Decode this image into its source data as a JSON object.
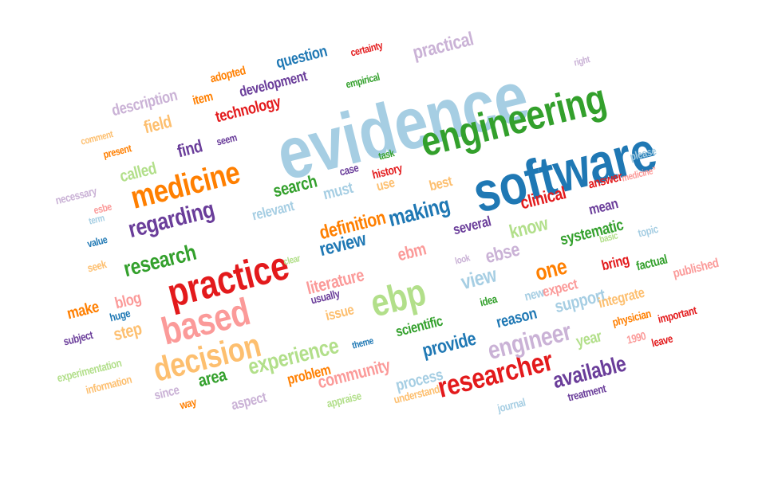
{
  "colors": {
    "light_blue": "#a6cee3",
    "blue": "#1f78b4",
    "light_green": "#b2df8a",
    "green": "#33a02c",
    "pink": "#fb9a99",
    "red": "#e31a1c",
    "light_orange": "#fdbf6f",
    "orange": "#ff7f00",
    "lavender": "#cab2d6",
    "purple": "#6a3d9a"
  },
  "words": [
    {
      "text": "evidence",
      "color": "light_blue"
    },
    {
      "text": "software",
      "color": "blue"
    },
    {
      "text": "engineering",
      "color": "green"
    },
    {
      "text": "practice",
      "color": "red"
    },
    {
      "text": "based",
      "color": "pink"
    },
    {
      "text": "ebp",
      "color": "light_green"
    },
    {
      "text": "decision",
      "color": "light_orange"
    },
    {
      "text": "medicine",
      "color": "orange"
    },
    {
      "text": "researcher",
      "color": "red"
    },
    {
      "text": "engineer",
      "color": "lavender"
    },
    {
      "text": "available",
      "color": "purple"
    },
    {
      "text": "regarding",
      "color": "purple"
    },
    {
      "text": "research",
      "color": "green"
    },
    {
      "text": "experience",
      "color": "light_green"
    },
    {
      "text": "making",
      "color": "blue"
    },
    {
      "text": "review",
      "color": "blue"
    },
    {
      "text": "literature",
      "color": "pink"
    },
    {
      "text": "ebm",
      "color": "pink"
    },
    {
      "text": "view",
      "color": "light_blue"
    },
    {
      "text": "clinical",
      "color": "red"
    },
    {
      "text": "practical",
      "color": "lavender"
    },
    {
      "text": "technology",
      "color": "red"
    },
    {
      "text": "development",
      "color": "purple"
    },
    {
      "text": "question",
      "color": "blue"
    },
    {
      "text": "description",
      "color": "lavender"
    },
    {
      "text": "field",
      "color": "light_orange"
    },
    {
      "text": "item",
      "color": "orange"
    },
    {
      "text": "adopted",
      "color": "orange"
    },
    {
      "text": "certainty",
      "color": "red"
    },
    {
      "text": "empirical",
      "color": "green"
    },
    {
      "text": "right",
      "color": "lavender"
    },
    {
      "text": "find",
      "color": "purple"
    },
    {
      "text": "seem",
      "color": "purple"
    },
    {
      "text": "comment",
      "color": "light_orange"
    },
    {
      "text": "present",
      "color": "orange"
    },
    {
      "text": "called",
      "color": "light_green"
    },
    {
      "text": "search",
      "color": "green"
    },
    {
      "text": "case",
      "color": "purple"
    },
    {
      "text": "task",
      "color": "green"
    },
    {
      "text": "history",
      "color": "red"
    },
    {
      "text": "must",
      "color": "light_blue"
    },
    {
      "text": "use",
      "color": "light_orange"
    },
    {
      "text": "best",
      "color": "light_orange"
    },
    {
      "text": "answer",
      "color": "red"
    },
    {
      "text": "please",
      "color": "light_blue"
    },
    {
      "text": "medicine”",
      "color": "pink"
    },
    {
      "text": "necessary",
      "color": "lavender"
    },
    {
      "text": "esbe",
      "color": "pink"
    },
    {
      "text": "term",
      "color": "light_blue"
    },
    {
      "text": "relevant",
      "color": "light_blue"
    },
    {
      "text": "definition",
      "color": "orange"
    },
    {
      "text": "several",
      "color": "purple"
    },
    {
      "text": "know",
      "color": "light_green"
    },
    {
      "text": "mean",
      "color": "purple"
    },
    {
      "text": "systematic",
      "color": "green"
    },
    {
      "text": "ebse",
      "color": "lavender"
    },
    {
      "text": "basic",
      "color": "light_green"
    },
    {
      "text": "topic",
      "color": "light_blue"
    },
    {
      "text": "value",
      "color": "blue"
    },
    {
      "text": "seek",
      "color": "light_orange"
    },
    {
      "text": "clear",
      "color": "light_green"
    },
    {
      "text": "look",
      "color": "lavender"
    },
    {
      "text": "one",
      "color": "orange"
    },
    {
      "text": "bring",
      "color": "red"
    },
    {
      "text": "factual",
      "color": "green"
    },
    {
      "text": "published",
      "color": "pink"
    },
    {
      "text": "make",
      "color": "orange"
    },
    {
      "text": "blog",
      "color": "pink"
    },
    {
      "text": "usually",
      "color": "purple"
    },
    {
      "text": "new",
      "color": "light_blue"
    },
    {
      "text": "expect",
      "color": "pink"
    },
    {
      "text": "support",
      "color": "light_blue"
    },
    {
      "text": "integrate",
      "color": "light_orange"
    },
    {
      "text": "idea",
      "color": "green"
    },
    {
      "text": "huge",
      "color": "blue"
    },
    {
      "text": "issue",
      "color": "light_orange"
    },
    {
      "text": "scientific",
      "color": "green"
    },
    {
      "text": "reason",
      "color": "blue"
    },
    {
      "text": "physician",
      "color": "orange"
    },
    {
      "text": "important",
      "color": "red"
    },
    {
      "text": "subject",
      "color": "purple"
    },
    {
      "text": "step",
      "color": "light_orange"
    },
    {
      "text": "provide",
      "color": "blue"
    },
    {
      "text": "year",
      "color": "light_green"
    },
    {
      "text": "1990",
      "color": "pink"
    },
    {
      "text": "leave",
      "color": "red"
    },
    {
      "text": "experimentation",
      "color": "light_green"
    },
    {
      "text": "information",
      "color": "light_orange"
    },
    {
      "text": "area",
      "color": "green"
    },
    {
      "text": "theme",
      "color": "blue"
    },
    {
      "text": "problem",
      "color": "orange"
    },
    {
      "text": "community",
      "color": "pink"
    },
    {
      "text": "process",
      "color": "light_blue"
    },
    {
      "text": "since",
      "color": "lavender"
    },
    {
      "text": "aspect",
      "color": "lavender"
    },
    {
      "text": "understand",
      "color": "light_orange"
    },
    {
      "text": "treatment",
      "color": "purple"
    },
    {
      "text": "way",
      "color": "orange"
    },
    {
      "text": "appraise",
      "color": "light_green"
    },
    {
      "text": "journal",
      "color": "light_blue"
    }
  ]
}
